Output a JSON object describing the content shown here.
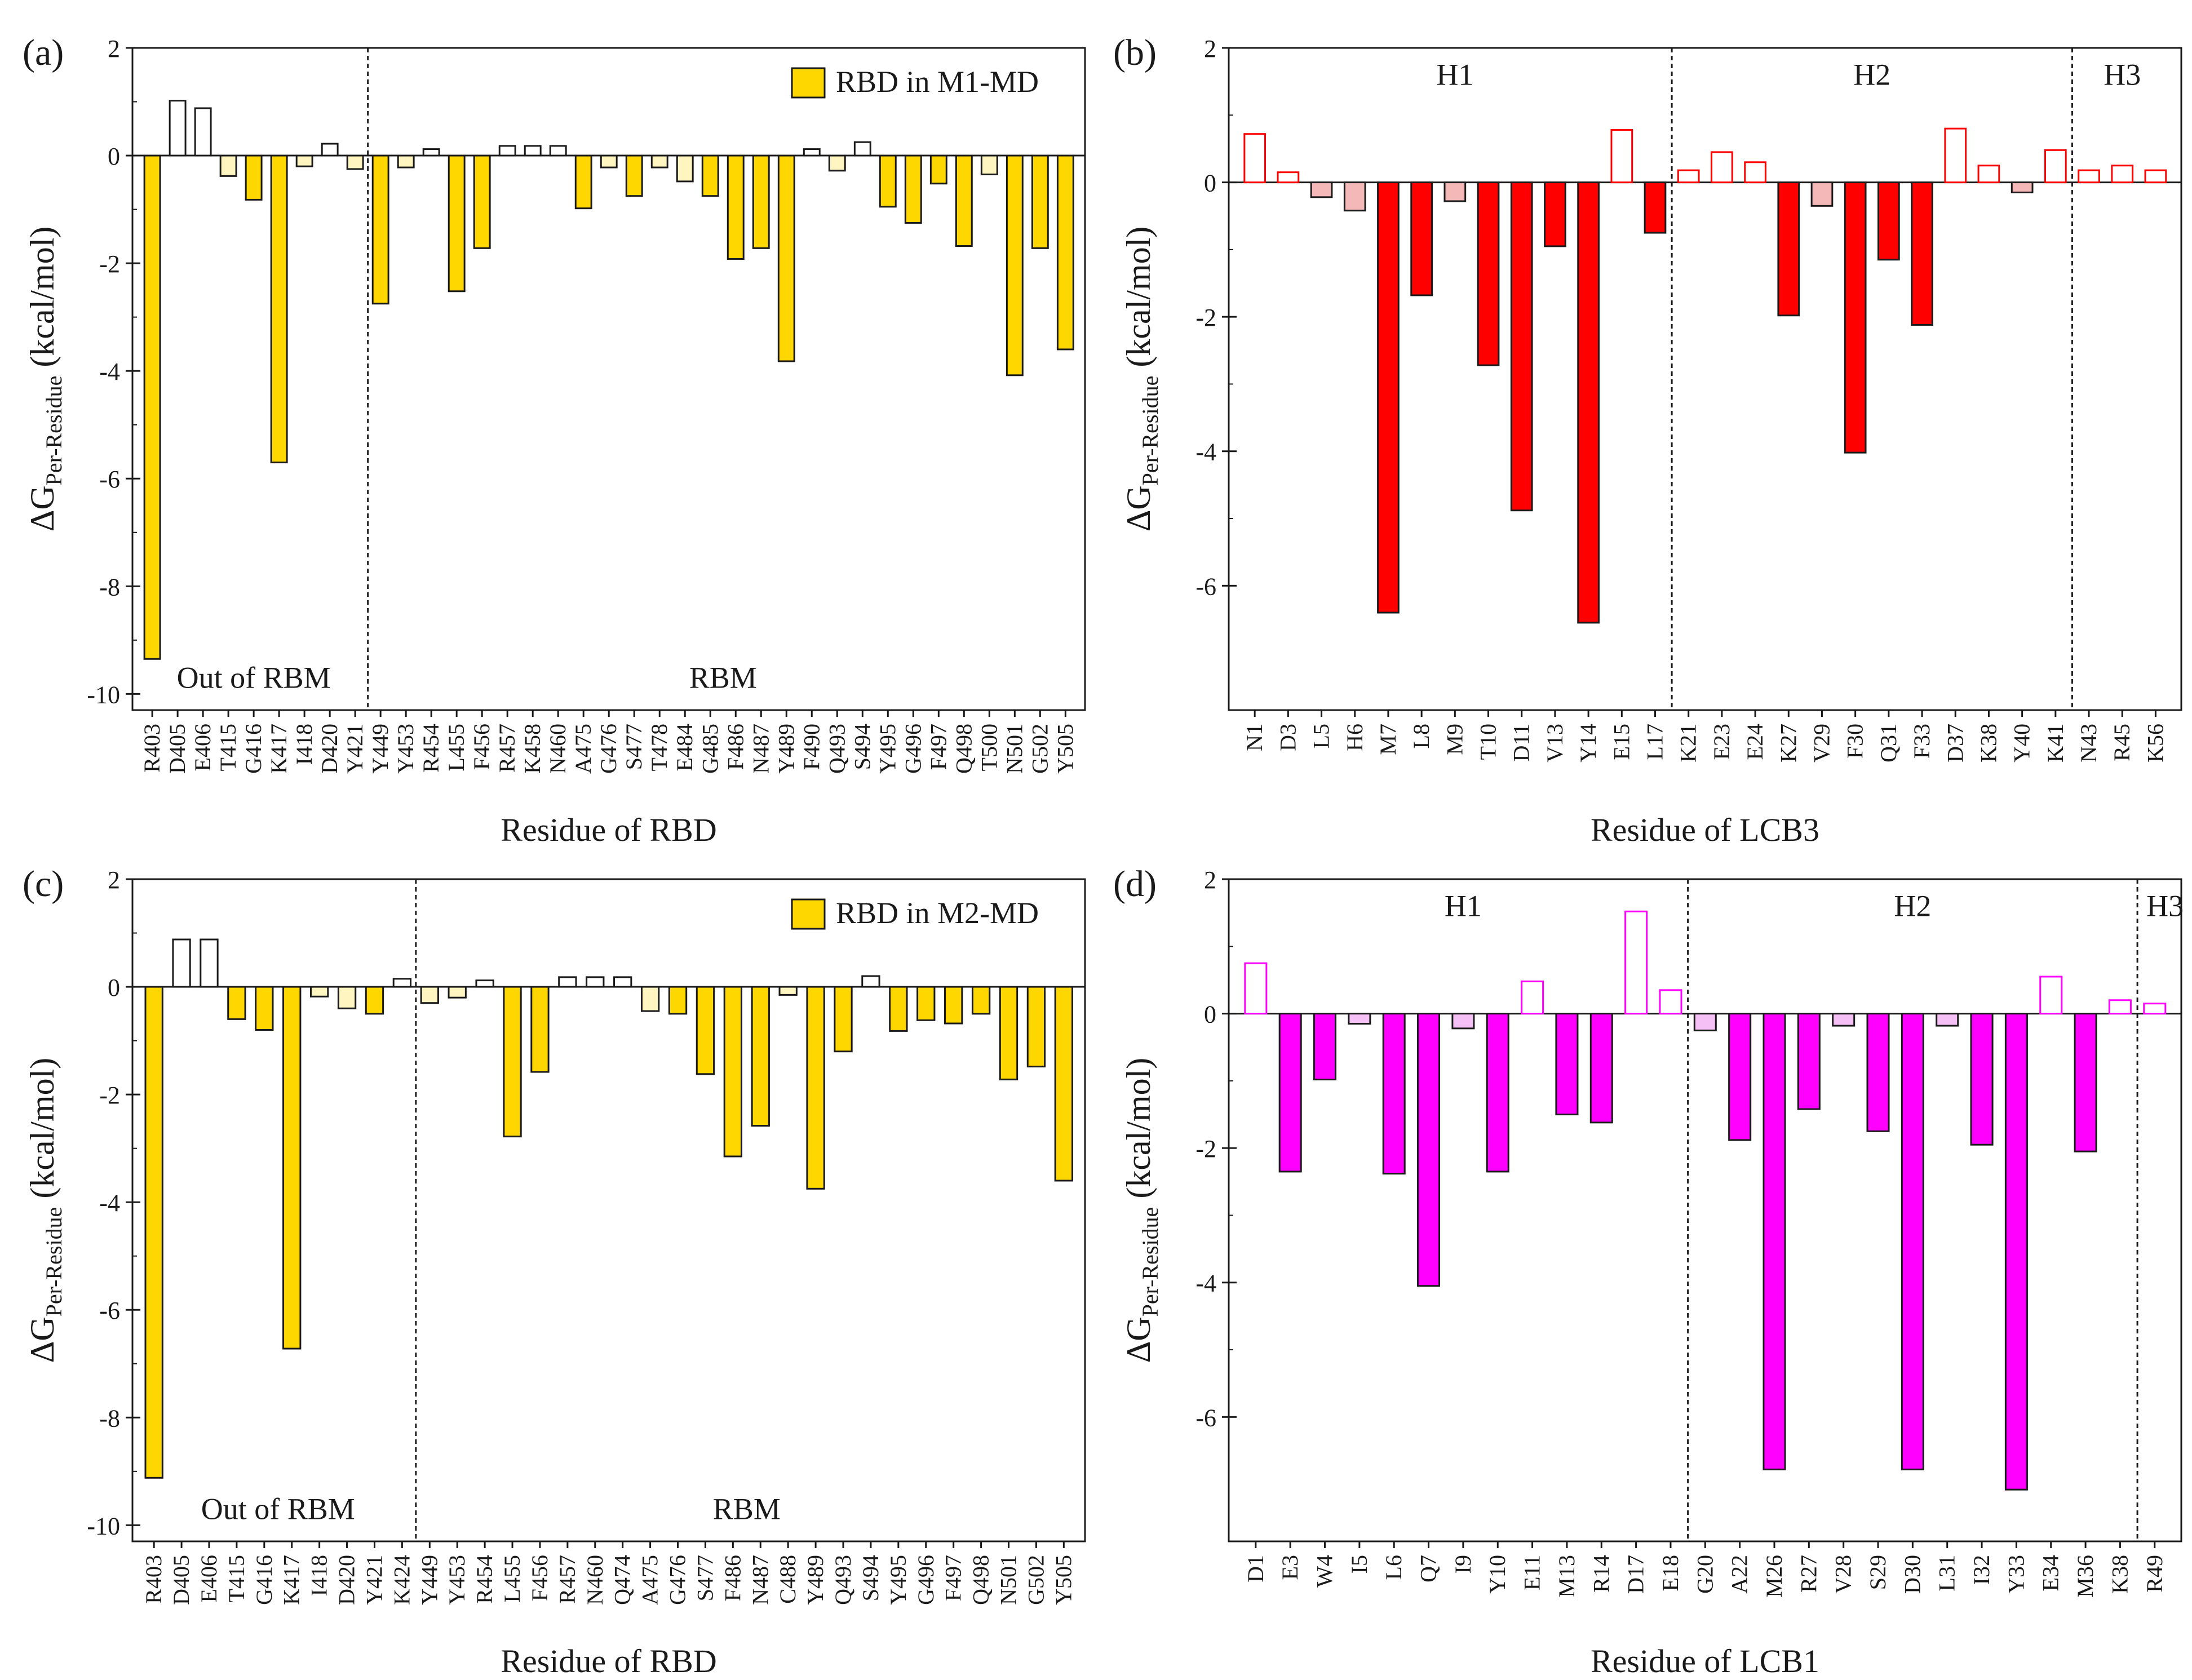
{
  "figure_title": "",
  "chart_data": [
    {
      "id": "a",
      "panel_label": "(a)",
      "type": "bar",
      "title": "",
      "xlabel": "Residue of RBD",
      "ylabel_main": "ΔG",
      "ylabel_sub": "Per-Residue",
      "ylabel_unit": " (kcal/mol)",
      "ylim": [
        -10.3,
        2
      ],
      "yticks": [
        2,
        0,
        -2,
        -4,
        -6,
        -8,
        -10
      ],
      "legend": "RBD in M1-MD",
      "color": "#FFD700",
      "color_light": "#FFF5C0",
      "threshold": 0.5,
      "categories": [
        "R403",
        "D405",
        "E406",
        "T415",
        "G416",
        "K417",
        "I418",
        "D420",
        "Y421",
        "Y449",
        "Y453",
        "R454",
        "L455",
        "F456",
        "R457",
        "K458",
        "N460",
        "A475",
        "G476",
        "S477",
        "T478",
        "E484",
        "G485",
        "F486",
        "N487",
        "Y489",
        "F490",
        "Q493",
        "S494",
        "Y495",
        "G496",
        "F497",
        "Q498",
        "T500",
        "N501",
        "G502",
        "Y505"
      ],
      "values": [
        -9.35,
        1.02,
        0.88,
        -0.38,
        -0.82,
        -5.7,
        -0.2,
        0.22,
        -0.25,
        -2.75,
        -0.22,
        0.12,
        -2.52,
        -1.72,
        0.18,
        0.18,
        0.18,
        -0.98,
        -0.22,
        -0.75,
        -0.22,
        -0.48,
        -0.75,
        -1.92,
        -1.72,
        -3.82,
        0.12,
        -0.28,
        0.25,
        -0.95,
        -1.25,
        -0.52,
        -1.68,
        -0.35,
        -4.08,
        -1.72,
        -3.6
      ],
      "dividers": [
        8.5
      ],
      "regions": [
        {
          "label": "Out of RBM",
          "center": 4,
          "y": -9.7
        },
        {
          "label": "RBM",
          "center": 22.5,
          "y": -9.7
        }
      ]
    },
    {
      "id": "b",
      "panel_label": "(b)",
      "type": "bar",
      "title": "",
      "xlabel": "Residue of LCB3",
      "ylabel_main": "ΔG",
      "ylabel_sub": "Per-Residue",
      "ylabel_unit": " (kcal/mol)",
      "ylim": [
        -7.85,
        2
      ],
      "yticks": [
        2,
        0,
        -2,
        -4,
        -6
      ],
      "legend": "",
      "color": "#FF0000",
      "color_light": "#F5B8B8",
      "threshold": 0.5,
      "categories": [
        "N1",
        "D3",
        "L5",
        "H6",
        "M7",
        "L8",
        "M9",
        "T10",
        "D11",
        "V13",
        "Y14",
        "E15",
        "L17",
        "K21",
        "E23",
        "E24",
        "K27",
        "V29",
        "F30",
        "Q31",
        "F33",
        "D37",
        "K38",
        "Y40",
        "K41",
        "N43",
        "R45",
        "K56"
      ],
      "values": [
        0.72,
        0.15,
        -0.22,
        -0.42,
        -6.4,
        -1.68,
        -0.28,
        -2.72,
        -4.88,
        -0.95,
        -6.55,
        0.78,
        -0.75,
        0.18,
        0.45,
        0.3,
        -1.98,
        -0.35,
        -4.02,
        -1.15,
        -2.12,
        0.8,
        0.25,
        -0.15,
        0.48,
        0.18,
        0.25,
        0.18
      ],
      "dividers": [
        12.5,
        24.5
      ],
      "regions": [
        {
          "label": "H1",
          "center": 6,
          "y": 1.6
        },
        {
          "label": "H2",
          "center": 18.5,
          "y": 1.6
        },
        {
          "label": "H3",
          "center": 26,
          "y": 1.6
        }
      ]
    },
    {
      "id": "c",
      "panel_label": "(c)",
      "type": "bar",
      "title": "",
      "xlabel": "Residue of RBD",
      "ylabel_main": "ΔG",
      "ylabel_sub": "Per-Residue",
      "ylabel_unit": " (kcal/mol)",
      "ylim": [
        -10.3,
        2
      ],
      "yticks": [
        2,
        0,
        -2,
        -4,
        -6,
        -8,
        -10
      ],
      "legend": "RBD in M2-MD",
      "color": "#FFD700",
      "color_light": "#FFF5C0",
      "threshold": 0.5,
      "categories": [
        "R403",
        "D405",
        "E406",
        "T415",
        "G416",
        "K417",
        "I418",
        "D420",
        "Y421",
        "K424",
        "Y449",
        "Y453",
        "R454",
        "L455",
        "F456",
        "R457",
        "N460",
        "Q474",
        "A475",
        "G476",
        "S477",
        "F486",
        "N487",
        "C488",
        "Y489",
        "Q493",
        "S494",
        "Y495",
        "G496",
        "F497",
        "Q498",
        "N501",
        "G502",
        "Y505"
      ],
      "values": [
        -9.12,
        0.88,
        0.88,
        -0.6,
        -0.8,
        -6.72,
        -0.18,
        -0.4,
        -0.5,
        0.15,
        -0.3,
        -0.2,
        0.12,
        -2.78,
        -1.58,
        0.18,
        0.18,
        0.18,
        -0.45,
        -0.5,
        -1.62,
        -3.15,
        -2.58,
        -0.15,
        -3.75,
        -1.2,
        0.2,
        -0.82,
        -0.62,
        -0.68,
        -0.5,
        -1.72,
        -1.48,
        -3.6
      ],
      "dividers": [
        9.5
      ],
      "regions": [
        {
          "label": "Out of RBM",
          "center": 4.5,
          "y": -9.7
        },
        {
          "label": "RBM",
          "center": 21.5,
          "y": -9.7
        }
      ]
    },
    {
      "id": "d",
      "panel_label": "(d)",
      "type": "bar",
      "title": "",
      "xlabel": "Residue of LCB1",
      "ylabel_main": "ΔG",
      "ylabel_sub": "Per-Residue",
      "ylabel_unit": " (kcal/mol)",
      "ylim": [
        -7.85,
        2
      ],
      "yticks": [
        2,
        0,
        -2,
        -4,
        -6
      ],
      "legend": "",
      "color": "#FF00FF",
      "color_light": "#F5C0F5",
      "threshold": 0.5,
      "categories": [
        "D1",
        "E3",
        "W4",
        "I5",
        "L6",
        "Q7",
        "I9",
        "Y10",
        "E11",
        "M13",
        "R14",
        "D17",
        "E18",
        "G20",
        "A22",
        "M26",
        "R27",
        "V28",
        "S29",
        "D30",
        "L31",
        "I32",
        "Y33",
        "E34",
        "M36",
        "K38",
        "R49"
      ],
      "values": [
        0.75,
        -2.35,
        -0.98,
        -0.15,
        -2.38,
        -4.05,
        -0.22,
        -2.35,
        0.48,
        -1.5,
        -1.62,
        1.52,
        0.35,
        -0.25,
        -1.88,
        -6.78,
        -1.42,
        -0.18,
        -1.75,
        -6.78,
        -0.18,
        -1.95,
        -7.08,
        0.55,
        -2.05,
        0.2,
        0.15
      ],
      "dividers": [
        12.5,
        25.5
      ],
      "regions": [
        {
          "label": "H1",
          "center": 6,
          "y": 1.6
        },
        {
          "label": "H2",
          "center": 19,
          "y": 1.6
        },
        {
          "label": "H3",
          "center": 26.3,
          "y": 1.6
        }
      ]
    }
  ]
}
